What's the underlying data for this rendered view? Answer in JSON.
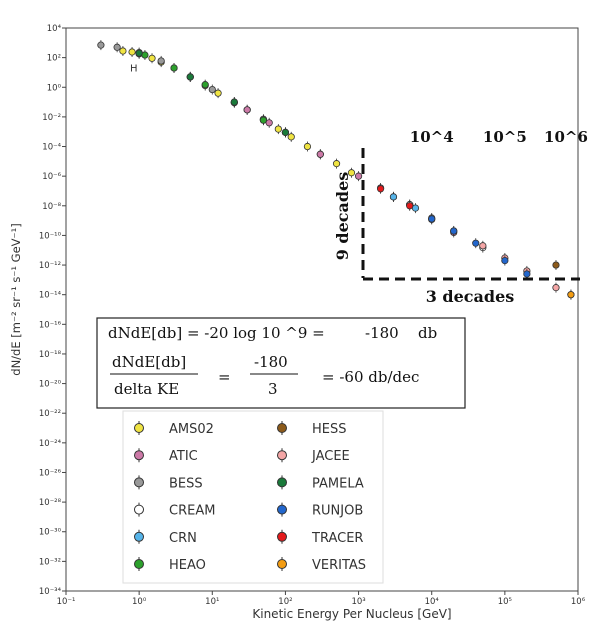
{
  "chart_data": {
    "type": "scatter",
    "xlabel": "Kinetic Energy Per Nucleus [GeV]",
    "ylabel": "dN/dE [m⁻² sr⁻¹ s⁻¹ GeV⁻¹]",
    "x_scale": "log",
    "y_scale": "log",
    "xlim": [
      0.1,
      1000000
    ],
    "ylim": [
      1e-34,
      10000
    ],
    "grid": true,
    "legend_position": "bottom-left",
    "x_ticks": [
      "10⁻¹",
      "10⁰",
      "10¹",
      "10²",
      "10³",
      "10⁴",
      "10⁵",
      "10⁶"
    ],
    "y_ticks": [
      "10⁴",
      "10²",
      "10⁰",
      "10⁻²",
      "10⁻⁴",
      "10⁻⁶",
      "10⁻⁸",
      "10⁻¹⁰",
      "10⁻¹²",
      "10⁻¹⁴",
      "10⁻¹⁶",
      "10⁻¹⁸",
      "10⁻²⁰",
      "10⁻²²",
      "10⁻²⁴",
      "10⁻²⁶",
      "10⁻²⁸",
      "10⁻³⁰",
      "10⁻³²",
      "10⁻³⁴"
    ],
    "species_label": "H",
    "series": [
      {
        "name": "AMS02",
        "color": "#f0e442",
        "points": [
          [
            0.6,
            280
          ],
          [
            0.8,
            240
          ],
          [
            1.0,
            180
          ],
          [
            1.5,
            90
          ],
          [
            2,
            50
          ],
          [
            3,
            20
          ],
          [
            5,
            5
          ],
          [
            8,
            1.3
          ],
          [
            12,
            0.4
          ],
          [
            20,
            0.09
          ],
          [
            30,
            0.03
          ],
          [
            50,
            0.006
          ],
          [
            80,
            0.0015
          ],
          [
            120,
            0.00045
          ],
          [
            200,
            0.0001
          ],
          [
            300,
            3e-05
          ],
          [
            500,
            7e-06
          ],
          [
            800,
            1.7e-06
          ]
        ]
      },
      {
        "name": "ATIC",
        "color": "#cc79a7",
        "points": [
          [
            30,
            0.03
          ],
          [
            60,
            0.004
          ],
          [
            100,
            0.0009
          ],
          [
            300,
            3e-05
          ],
          [
            1000,
            1e-06
          ],
          [
            2000,
            1.6e-07
          ],
          [
            5000,
            1.2e-08
          ],
          [
            10000,
            1.2e-09
          ],
          [
            20000,
            1.6e-10
          ]
        ]
      },
      {
        "name": "BESS",
        "color": "#999999",
        "points": [
          [
            0.3,
            700
          ],
          [
            0.5,
            500
          ],
          [
            1,
            220
          ],
          [
            2,
            60
          ],
          [
            5,
            5
          ],
          [
            10,
            0.7
          ],
          [
            50,
            0.007
          ],
          [
            100,
            0.0009
          ]
        ]
      },
      {
        "name": "CREAM",
        "color": "#ffffff",
        "points": [
          [
            3000,
            4e-08
          ],
          [
            5000,
            1.2e-08
          ],
          [
            10000,
            1.5e-09
          ],
          [
            20000,
            2e-10
          ],
          [
            50000,
            1.5e-11
          ]
        ]
      },
      {
        "name": "CRN",
        "color": "#56b4e9",
        "points": [
          [
            3000,
            4e-08
          ],
          [
            6000,
            7e-09
          ]
        ]
      },
      {
        "name": "HEAO",
        "color": "#2ca02c",
        "points": [
          [
            1.2,
            150
          ],
          [
            3,
            20
          ],
          [
            8,
            1.5
          ],
          [
            20,
            0.1
          ],
          [
            50,
            0.006
          ]
        ]
      },
      {
        "name": "HESS",
        "color": "#8c5a1a",
        "points": [
          [
            500000,
            1e-12
          ]
        ]
      },
      {
        "name": "JACEE",
        "color": "#f4a6a6",
        "points": [
          [
            50000,
            2e-11
          ],
          [
            100000,
            3e-12
          ],
          [
            200000,
            4e-13
          ],
          [
            500000,
            3e-14
          ],
          [
            800000,
            1e-14
          ]
        ]
      },
      {
        "name": "PAMELA",
        "color": "#1a7a3a",
        "points": [
          [
            1,
            200
          ],
          [
            5,
            5
          ],
          [
            20,
            0.1
          ],
          [
            100,
            0.0009
          ]
        ]
      },
      {
        "name": "RUNJOB",
        "color": "#2266cc",
        "points": [
          [
            10000,
            1.3e-09
          ],
          [
            20000,
            2e-10
          ],
          [
            40000,
            3e-11
          ],
          [
            100000,
            2e-12
          ],
          [
            200000,
            2.5e-13
          ]
        ]
      },
      {
        "name": "TRACER",
        "color": "#e41a1c",
        "points": [
          [
            2000,
            1.4e-07
          ],
          [
            5000,
            1e-08
          ]
        ]
      },
      {
        "name": "VERITAS",
        "color": "#f39c12",
        "points": [
          [
            800000,
            1e-14
          ]
        ]
      }
    ],
    "annotations": {
      "decade_labels": [
        "10^4",
        "10^5",
        "10^6"
      ],
      "nine_decades": "9 decades",
      "three_decades": "3 decades",
      "eq1_left": "dNdE[db] = -20 log 10 ^9 =",
      "eq1_mid": "-180",
      "eq1_right": "db",
      "eq2_num": "dNdE[db]",
      "eq2_den": "delta KE",
      "eq2_eq": "=",
      "eq2_num2": "-180",
      "eq2_den2": "3",
      "eq2_result": "= -60 db/dec"
    }
  }
}
